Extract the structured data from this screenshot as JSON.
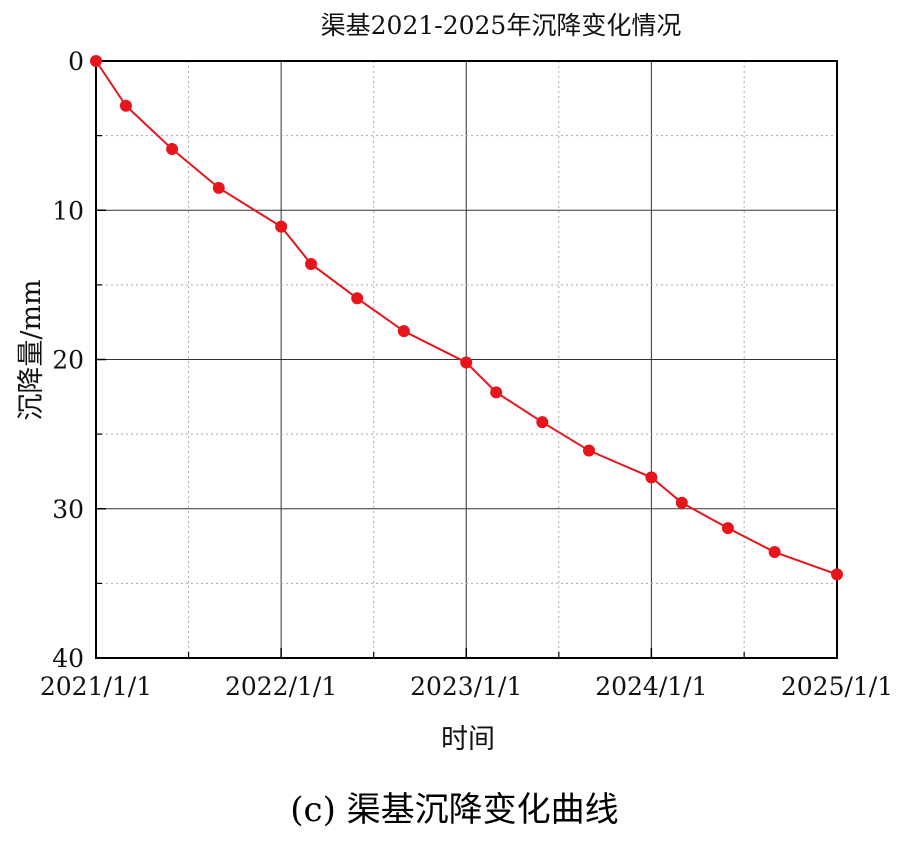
{
  "chart_data": {
    "type": "line",
    "title": "渠基2021-2025年沉降变化情况",
    "xlabel": "时间",
    "ylabel": "沉降量/mm",
    "ylim": [
      0,
      40
    ],
    "y_inverted": true,
    "y_ticks": [
      "0",
      "10",
      "20",
      "30",
      "40"
    ],
    "x_ticks": [
      "2021/1/1",
      "2022/1/1",
      "2023/1/1",
      "2024/1/1",
      "2025/1/1"
    ],
    "grid": true,
    "series_color": "#e8141c",
    "series": [
      {
        "x": [
          "2021/1/1",
          "2021/3/1",
          "2021/5/31",
          "2021/8/31",
          "2022/1/1",
          "2022/3/1",
          "2022/5/31",
          "2022/8/31",
          "2023/1/1",
          "2023/3/1",
          "2023/5/31",
          "2023/8/31",
          "2024/1/1",
          "2024/3/1",
          "2024/5/31",
          "2024/8/31",
          "2025/1/1"
        ],
        "values": [
          0,
          3.0,
          5.9,
          8.5,
          11.1,
          13.6,
          15.9,
          18.1,
          20.2,
          22.2,
          24.2,
          26.1,
          27.9,
          29.6,
          31.3,
          32.9,
          34.4
        ]
      }
    ]
  },
  "caption": "(c) 渠基沉降变化曲线"
}
